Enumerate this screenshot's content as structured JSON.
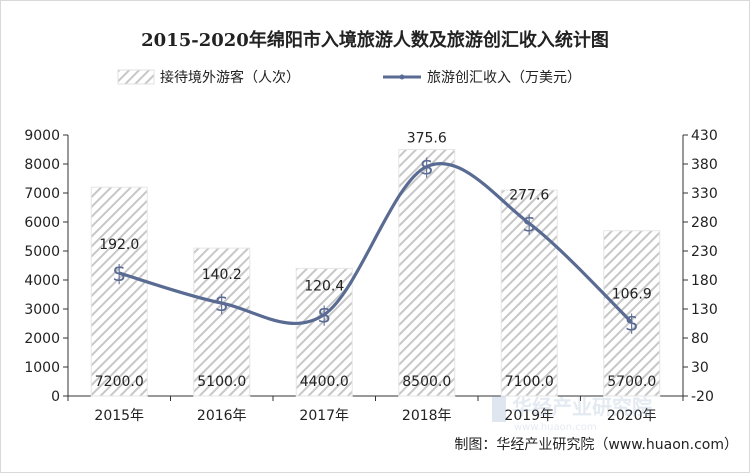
{
  "chart_data": {
    "type": "bar+line",
    "title": "2015-2020年绵阳市入境旅游人数及旅游创汇收入统计图",
    "categories": [
      "2015年",
      "2016年",
      "2017年",
      "2018年",
      "2019年",
      "2020年"
    ],
    "series": [
      {
        "name": "接待境外游客（人次）",
        "type": "bar",
        "axis": "left",
        "values": [
          7200.0,
          5100.0,
          4400.0,
          8500.0,
          7100.0,
          5700.0
        ],
        "labels": [
          "7200.0",
          "5100.0",
          "4400.0",
          "8500.0",
          "7100.0",
          "5700.0"
        ]
      },
      {
        "name": "旅游创汇收入（万美元）",
        "type": "line",
        "axis": "right",
        "values": [
          192.0,
          140.2,
          120.4,
          375.6,
          277.6,
          106.9
        ],
        "labels": [
          "192.0",
          "140.2",
          "120.4",
          "375.6",
          "277.6",
          "106.9"
        ],
        "marker": "$"
      }
    ],
    "y_left": {
      "min": 0,
      "max": 9000,
      "step": 1000,
      "ticks": [
        "0",
        "1000",
        "2000",
        "3000",
        "4000",
        "5000",
        "6000",
        "7000",
        "8000",
        "9000"
      ]
    },
    "y_right": {
      "min": -20,
      "max": 430,
      "step": 50,
      "ticks": [
        "-20",
        "30",
        "80",
        "130",
        "180",
        "230",
        "280",
        "330",
        "380",
        "430"
      ]
    },
    "grid": false,
    "legend": "top-center",
    "source": "制图：华经产业研究院（www.huaon.com）",
    "watermark": "华经产业研究院",
    "watermark_url": "www.huaon.com"
  },
  "colors": {
    "line": "#5a6b93",
    "bar_fill": "#ffffff",
    "bar_hatch": "#c7c7c7",
    "axis": "#333333",
    "text": "#222222"
  }
}
